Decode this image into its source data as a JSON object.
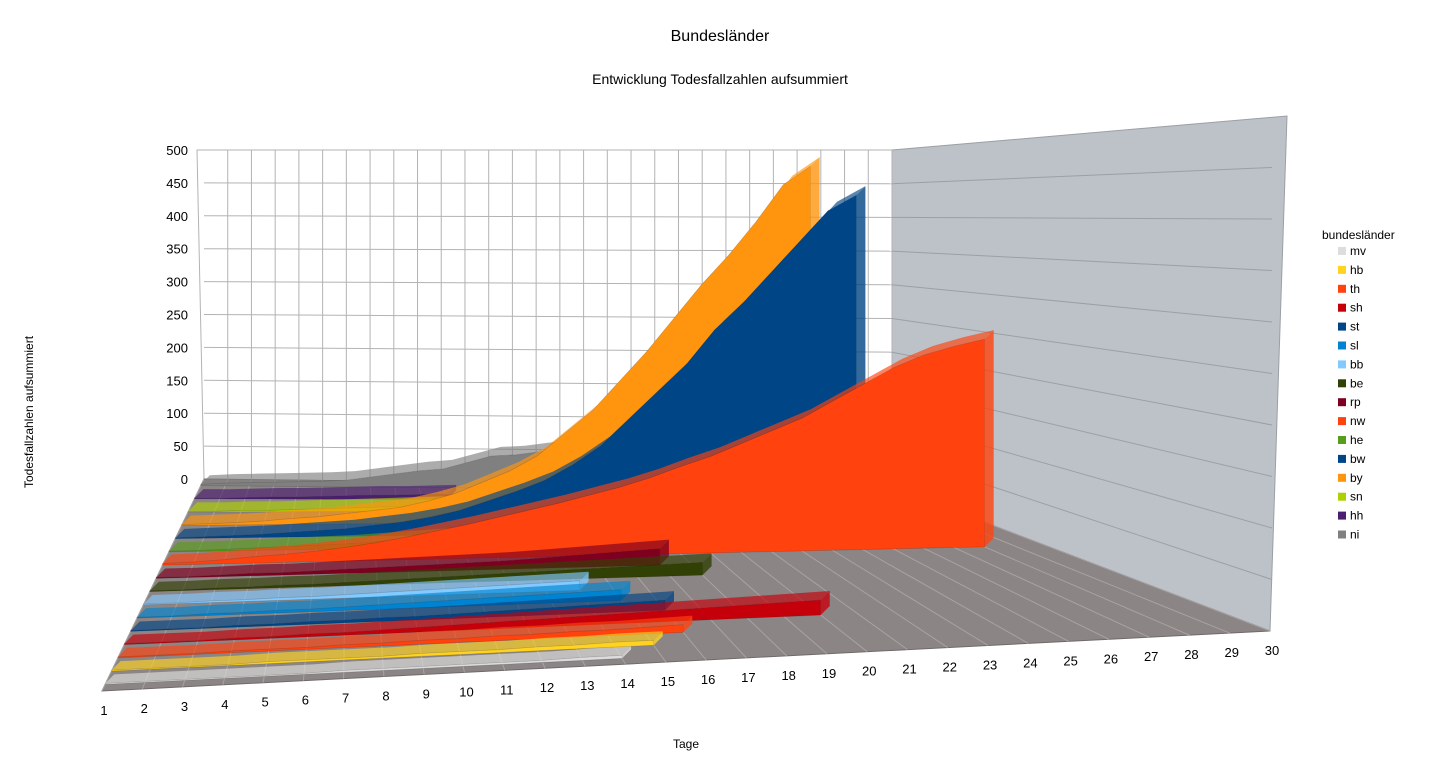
{
  "chart_data": {
    "type": "area",
    "title": "Bundesländer",
    "subtitle": "Entwicklung Todesfallzahlen aufsummiert",
    "xlabel": "Tage",
    "ylabel": "Todesfallzahlen aufsummiert",
    "ylim": [
      0,
      500
    ],
    "yticks": [
      "0",
      "50",
      "100",
      "150",
      "200",
      "250",
      "300",
      "350",
      "400",
      "450",
      "500"
    ],
    "categories": [
      "1",
      "2",
      "3",
      "4",
      "5",
      "6",
      "7",
      "8",
      "9",
      "10",
      "11",
      "12",
      "13",
      "14",
      "15",
      "16",
      "17",
      "18",
      "19",
      "20",
      "21",
      "22",
      "23",
      "24",
      "25",
      "26",
      "27",
      "28",
      "29",
      "30"
    ],
    "grid": true,
    "legend_title": "bundesländer",
    "legend_position": "right",
    "series": [
      {
        "name": "ni",
        "color": "#808080",
        "values": [
          2,
          4,
          5,
          6,
          7,
          8,
          10,
          15,
          20,
          25,
          28,
          38,
          48,
          50,
          55,
          60,
          null,
          null,
          null,
          null,
          null,
          null,
          null,
          null,
          null,
          null,
          null,
          null,
          null,
          null
        ]
      },
      {
        "name": "hh",
        "color": "#4b1f6f",
        "values": [
          1,
          1,
          2,
          3,
          3,
          4,
          5,
          6,
          6,
          7,
          8,
          null,
          null,
          null,
          null,
          null,
          null,
          null,
          null,
          null,
          null,
          null,
          null,
          null,
          null,
          null,
          null,
          null,
          null,
          null
        ]
      },
      {
        "name": "sn",
        "color": "#aecf00",
        "values": [
          1,
          1,
          2,
          2,
          3,
          4,
          5,
          6,
          7,
          8,
          9,
          10,
          12,
          14,
          null,
          null,
          null,
          null,
          null,
          null,
          null,
          null,
          null,
          null,
          null,
          null,
          null,
          null,
          null,
          null
        ]
      },
      {
        "name": "by",
        "color": "#ff950e",
        "values": [
          1,
          2,
          3,
          5,
          8,
          10,
          14,
          18,
          22,
          30,
          40,
          55,
          70,
          90,
          120,
          150,
          190,
          230,
          275,
          320,
          360,
          405,
          455,
          480,
          null,
          null,
          null,
          null,
          null,
          null
        ]
      },
      {
        "name": "bw",
        "color": "#004586",
        "values": [
          1,
          2,
          3,
          4,
          6,
          8,
          10,
          14,
          18,
          24,
          32,
          44,
          56,
          70,
          90,
          115,
          150,
          185,
          220,
          265,
          300,
          340,
          380,
          420,
          440,
          null,
          null,
          null,
          null,
          null
        ]
      },
      {
        "name": "he",
        "color": "#579d1c",
        "values": [
          1,
          1,
          2,
          3,
          4,
          5,
          6,
          8,
          10,
          12,
          15,
          18,
          22,
          26,
          30,
          null,
          null,
          null,
          null,
          null,
          null,
          null,
          null,
          null,
          null,
          null,
          null,
          null,
          null,
          null
        ]
      },
      {
        "name": "nw",
        "color": "#ff420e",
        "values": [
          2,
          3,
          5,
          8,
          10,
          13,
          17,
          22,
          28,
          35,
          42,
          50,
          58,
          66,
          75,
          84,
          95,
          108,
          120,
          135,
          150,
          165,
          185,
          205,
          225,
          240,
          250,
          258,
          null,
          null
        ]
      },
      {
        "name": "rp",
        "color": "#7e0021",
        "values": [
          1,
          1,
          2,
          3,
          3,
          4,
          5,
          6,
          7,
          8,
          9,
          10,
          12,
          14,
          16,
          18,
          20,
          null,
          null,
          null,
          null,
          null,
          null,
          null,
          null,
          null,
          null,
          null,
          null,
          null
        ]
      },
      {
        "name": "be",
        "color": "#314004",
        "values": [
          1,
          1,
          2,
          2,
          3,
          3,
          4,
          5,
          6,
          7,
          8,
          9,
          10,
          11,
          12,
          13,
          14,
          15,
          null,
          null,
          null,
          null,
          null,
          null,
          null,
          null,
          null,
          null,
          null,
          null
        ]
      },
      {
        "name": "bb",
        "color": "#83caff",
        "values": [
          1,
          1,
          2,
          2,
          3,
          3,
          4,
          5,
          6,
          7,
          8,
          9,
          10,
          11,
          null,
          null,
          null,
          null,
          null,
          null,
          null,
          null,
          null,
          null,
          null,
          null,
          null,
          null,
          null,
          null
        ]
      },
      {
        "name": "sl",
        "color": "#0084d1",
        "values": [
          1,
          1,
          2,
          2,
          3,
          3,
          4,
          5,
          6,
          7,
          8,
          9,
          10,
          11,
          12,
          null,
          null,
          null,
          null,
          null,
          null,
          null,
          null,
          null,
          null,
          null,
          null,
          null,
          null,
          null
        ]
      },
      {
        "name": "st",
        "color": "#004586",
        "values": [
          1,
          1,
          1,
          2,
          2,
          3,
          3,
          4,
          4,
          5,
          6,
          7,
          8,
          9,
          10,
          11,
          null,
          null,
          null,
          null,
          null,
          null,
          null,
          null,
          null,
          null,
          null,
          null,
          null,
          null
        ]
      },
      {
        "name": "sh",
        "color": "#c5000b",
        "values": [
          1,
          1,
          1,
          2,
          2,
          3,
          3,
          4,
          5,
          6,
          7,
          8,
          9,
          10,
          11,
          12,
          13,
          14,
          15,
          16,
          null,
          null,
          null,
          null,
          null,
          null,
          null,
          null,
          null,
          null
        ]
      },
      {
        "name": "th",
        "color": "#ff420e",
        "values": [
          1,
          1,
          1,
          2,
          2,
          2,
          3,
          3,
          4,
          4,
          5,
          5,
          6,
          6,
          7,
          8,
          null,
          null,
          null,
          null,
          null,
          null,
          null,
          null,
          null,
          null,
          null,
          null,
          null,
          null
        ]
      },
      {
        "name": "hb",
        "color": "#ffd320",
        "values": [
          1,
          1,
          1,
          1,
          2,
          2,
          2,
          2,
          3,
          3,
          3,
          4,
          4,
          5,
          5,
          null,
          null,
          null,
          null,
          null,
          null,
          null,
          null,
          null,
          null,
          null,
          null,
          null,
          null,
          null
        ]
      },
      {
        "name": "mv",
        "color": "#dddddd",
        "values": [
          1,
          1,
          1,
          1,
          1,
          1,
          2,
          2,
          2,
          2,
          2,
          2,
          3,
          3,
          null,
          null,
          null,
          null,
          null,
          null,
          null,
          null,
          null,
          null,
          null,
          null,
          null,
          null,
          null,
          null
        ]
      }
    ]
  }
}
